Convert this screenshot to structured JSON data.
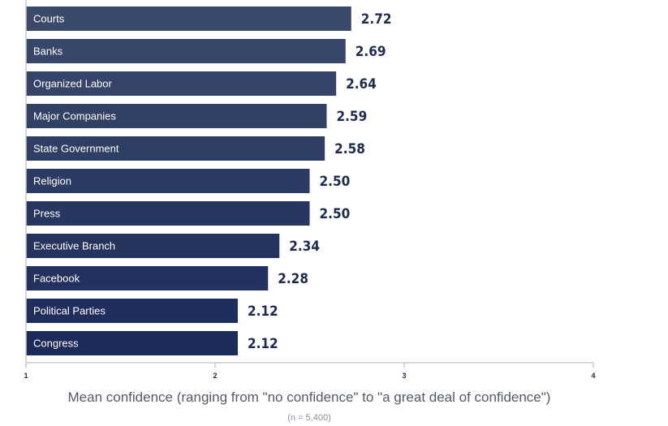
{
  "chart_data": {
    "type": "bar",
    "orientation": "horizontal",
    "categories": [
      "Courts",
      "Banks",
      "Organized Labor",
      "Major Companies",
      "State Government",
      "Religion",
      "Press",
      "Executive Branch",
      "Facebook",
      "Political Parties",
      "Congress"
    ],
    "values": [
      2.72,
      2.69,
      2.64,
      2.59,
      2.58,
      2.5,
      2.5,
      2.34,
      2.28,
      2.12,
      2.12
    ],
    "value_labels": [
      "2.72",
      "2.69",
      "2.64",
      "2.59",
      "2.58",
      "2.50",
      "2.50",
      "2.34",
      "2.28",
      "2.12",
      "2.12"
    ],
    "xlabel": "Mean confidence (ranging from \"no confidence\" to \"a great deal of confidence\")",
    "note": "(n = 5,400)",
    "xlim": [
      1,
      4
    ],
    "xticks": [
      "1",
      "2",
      "3",
      "4"
    ],
    "bar_color_top": "#3b4a6b",
    "bar_color_bottom": "#1c2b5a",
    "value_color": "#1c2b4f",
    "axis_color": "#c8cbd0",
    "grid": false
  }
}
